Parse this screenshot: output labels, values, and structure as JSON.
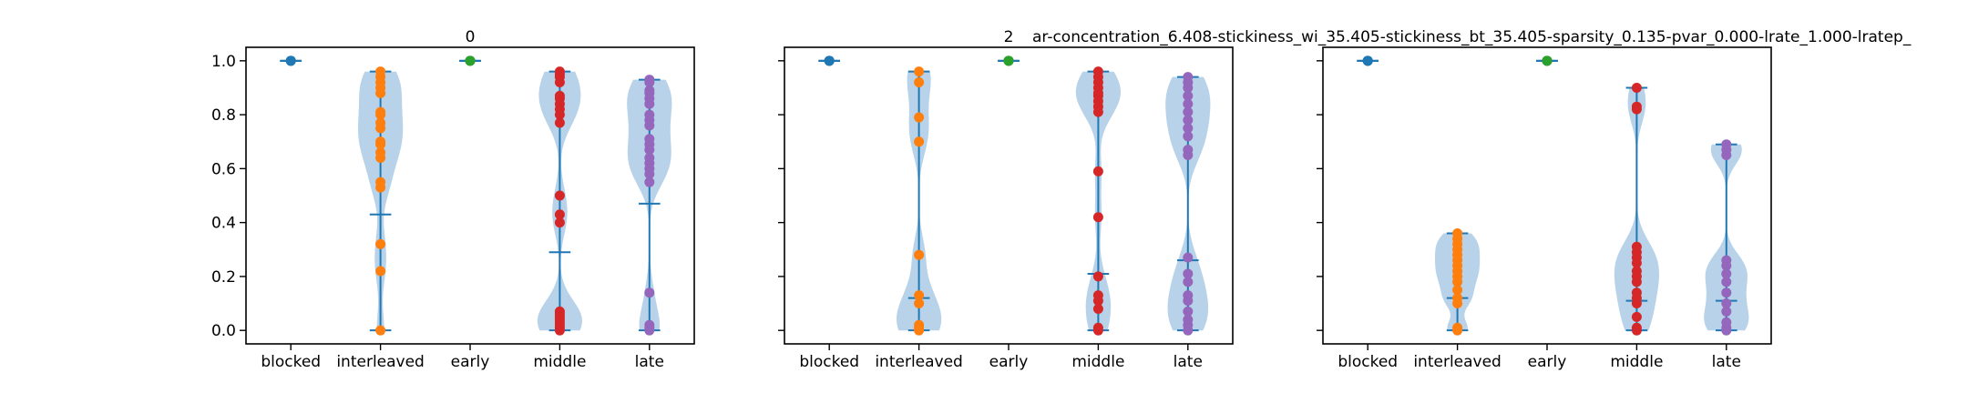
{
  "figure": {
    "suptitle": "ar-concentration_6.408-stickiness_wi_35.405-stickiness_bt_35.405-sparsity_0.135-pvar_0.000-lrate_1.000-lratep_"
  },
  "colors": {
    "violin_fill": "#a6c8e4",
    "line": "#1f77b4",
    "blocked": "#1f77b4",
    "interleaved": "#ff7f0e",
    "early": "#2ca02c",
    "middle": "#d62728",
    "late": "#9467bd"
  },
  "chart_data": [
    {
      "type": "violin",
      "title": "0",
      "categories": [
        "blocked",
        "interleaved",
        "early",
        "middle",
        "late"
      ],
      "ylim": [
        -0.05,
        1.05
      ],
      "yticks": [
        0.0,
        0.2,
        0.4,
        0.6,
        0.8,
        1.0
      ],
      "ytick_labels": [
        "0.0",
        "0.2",
        "0.4",
        "0.6",
        "0.8",
        "1.0"
      ],
      "grid": false,
      "series": [
        {
          "category": "blocked",
          "min": 1.0,
          "max": 1.0,
          "mean": 1.0,
          "points": [
            1.0,
            1.0,
            1.0
          ]
        },
        {
          "category": "interleaved",
          "min": 0.0,
          "max": 0.96,
          "mean": 0.43,
          "points": [
            0.0,
            0.22,
            0.32,
            0.53,
            0.55,
            0.64,
            0.66,
            0.69,
            0.7,
            0.75,
            0.77,
            0.8,
            0.81,
            0.88,
            0.9,
            0.92,
            0.94,
            0.96
          ]
        },
        {
          "category": "early",
          "min": 1.0,
          "max": 1.0,
          "mean": 1.0,
          "points": [
            1.0,
            1.0,
            1.0
          ]
        },
        {
          "category": "middle",
          "min": 0.0,
          "max": 0.96,
          "mean": 0.29,
          "points": [
            0.0,
            0.01,
            0.02,
            0.03,
            0.04,
            0.05,
            0.06,
            0.07,
            0.4,
            0.43,
            0.5,
            0.77,
            0.8,
            0.82,
            0.84,
            0.86,
            0.87,
            0.92,
            0.94,
            0.95,
            0.96
          ]
        },
        {
          "category": "late",
          "min": 0.0,
          "max": 0.93,
          "mean": 0.47,
          "points": [
            0.0,
            0.01,
            0.02,
            0.14,
            0.55,
            0.58,
            0.6,
            0.62,
            0.64,
            0.67,
            0.69,
            0.71,
            0.76,
            0.78,
            0.8,
            0.84,
            0.86,
            0.88,
            0.89,
            0.92,
            0.93
          ]
        }
      ]
    },
    {
      "type": "violin",
      "title": "2",
      "categories": [
        "blocked",
        "interleaved",
        "early",
        "middle",
        "late"
      ],
      "ylim": [
        -0.05,
        1.05
      ],
      "yticks": [
        0.0,
        0.2,
        0.4,
        0.6,
        0.8,
        1.0
      ],
      "ytick_labels": [
        "",
        "",
        "",
        "",
        "",
        ""
      ],
      "grid": false,
      "series": [
        {
          "category": "blocked",
          "min": 1.0,
          "max": 1.0,
          "mean": 1.0,
          "points": [
            1.0,
            1.0,
            1.0
          ]
        },
        {
          "category": "interleaved",
          "min": 0.0,
          "max": 0.96,
          "mean": 0.12,
          "points": [
            0.0,
            0.01,
            0.02,
            0.1,
            0.13,
            0.28,
            0.7,
            0.79,
            0.92,
            0.96
          ]
        },
        {
          "category": "early",
          "min": 1.0,
          "max": 1.0,
          "mean": 1.0,
          "points": [
            1.0,
            1.0,
            1.0
          ]
        },
        {
          "category": "middle",
          "min": 0.0,
          "max": 0.96,
          "mean": 0.21,
          "points": [
            0.0,
            0.01,
            0.08,
            0.11,
            0.13,
            0.2,
            0.42,
            0.59,
            0.81,
            0.83,
            0.85,
            0.87,
            0.88,
            0.9,
            0.92,
            0.94,
            0.96
          ]
        },
        {
          "category": "late",
          "min": 0.0,
          "max": 0.94,
          "mean": 0.26,
          "points": [
            0.0,
            0.02,
            0.04,
            0.07,
            0.11,
            0.13,
            0.18,
            0.21,
            0.27,
            0.65,
            0.67,
            0.72,
            0.75,
            0.78,
            0.81,
            0.84,
            0.87,
            0.9,
            0.92,
            0.94
          ]
        }
      ]
    },
    {
      "type": "violin",
      "title": "",
      "categories": [
        "blocked",
        "interleaved",
        "early",
        "middle",
        "late"
      ],
      "ylim": [
        -0.05,
        1.05
      ],
      "yticks": [
        0.0,
        0.2,
        0.4,
        0.6,
        0.8,
        1.0
      ],
      "ytick_labels": [
        "",
        "",
        "",
        "",
        "",
        ""
      ],
      "grid": false,
      "series": [
        {
          "category": "blocked",
          "min": 1.0,
          "max": 1.0,
          "mean": 1.0,
          "points": [
            1.0,
            1.0,
            1.0
          ]
        },
        {
          "category": "interleaved",
          "min": 0.0,
          "max": 0.36,
          "mean": 0.12,
          "points": [
            0.0,
            0.01,
            0.1,
            0.12,
            0.15,
            0.18,
            0.2,
            0.22,
            0.24,
            0.26,
            0.28,
            0.3,
            0.32,
            0.34,
            0.36
          ]
        },
        {
          "category": "early",
          "min": 1.0,
          "max": 1.0,
          "mean": 1.0,
          "points": [
            1.0,
            1.0,
            1.0
          ]
        },
        {
          "category": "middle",
          "min": 0.0,
          "max": 0.9,
          "mean": 0.11,
          "points": [
            0.0,
            0.01,
            0.05,
            0.1,
            0.12,
            0.14,
            0.18,
            0.2,
            0.22,
            0.25,
            0.27,
            0.29,
            0.31,
            0.82,
            0.83,
            0.9
          ]
        },
        {
          "category": "late",
          "min": 0.0,
          "max": 0.69,
          "mean": 0.11,
          "points": [
            0.0,
            0.01,
            0.03,
            0.07,
            0.1,
            0.14,
            0.18,
            0.21,
            0.24,
            0.26,
            0.65,
            0.67,
            0.69
          ]
        }
      ]
    }
  ]
}
